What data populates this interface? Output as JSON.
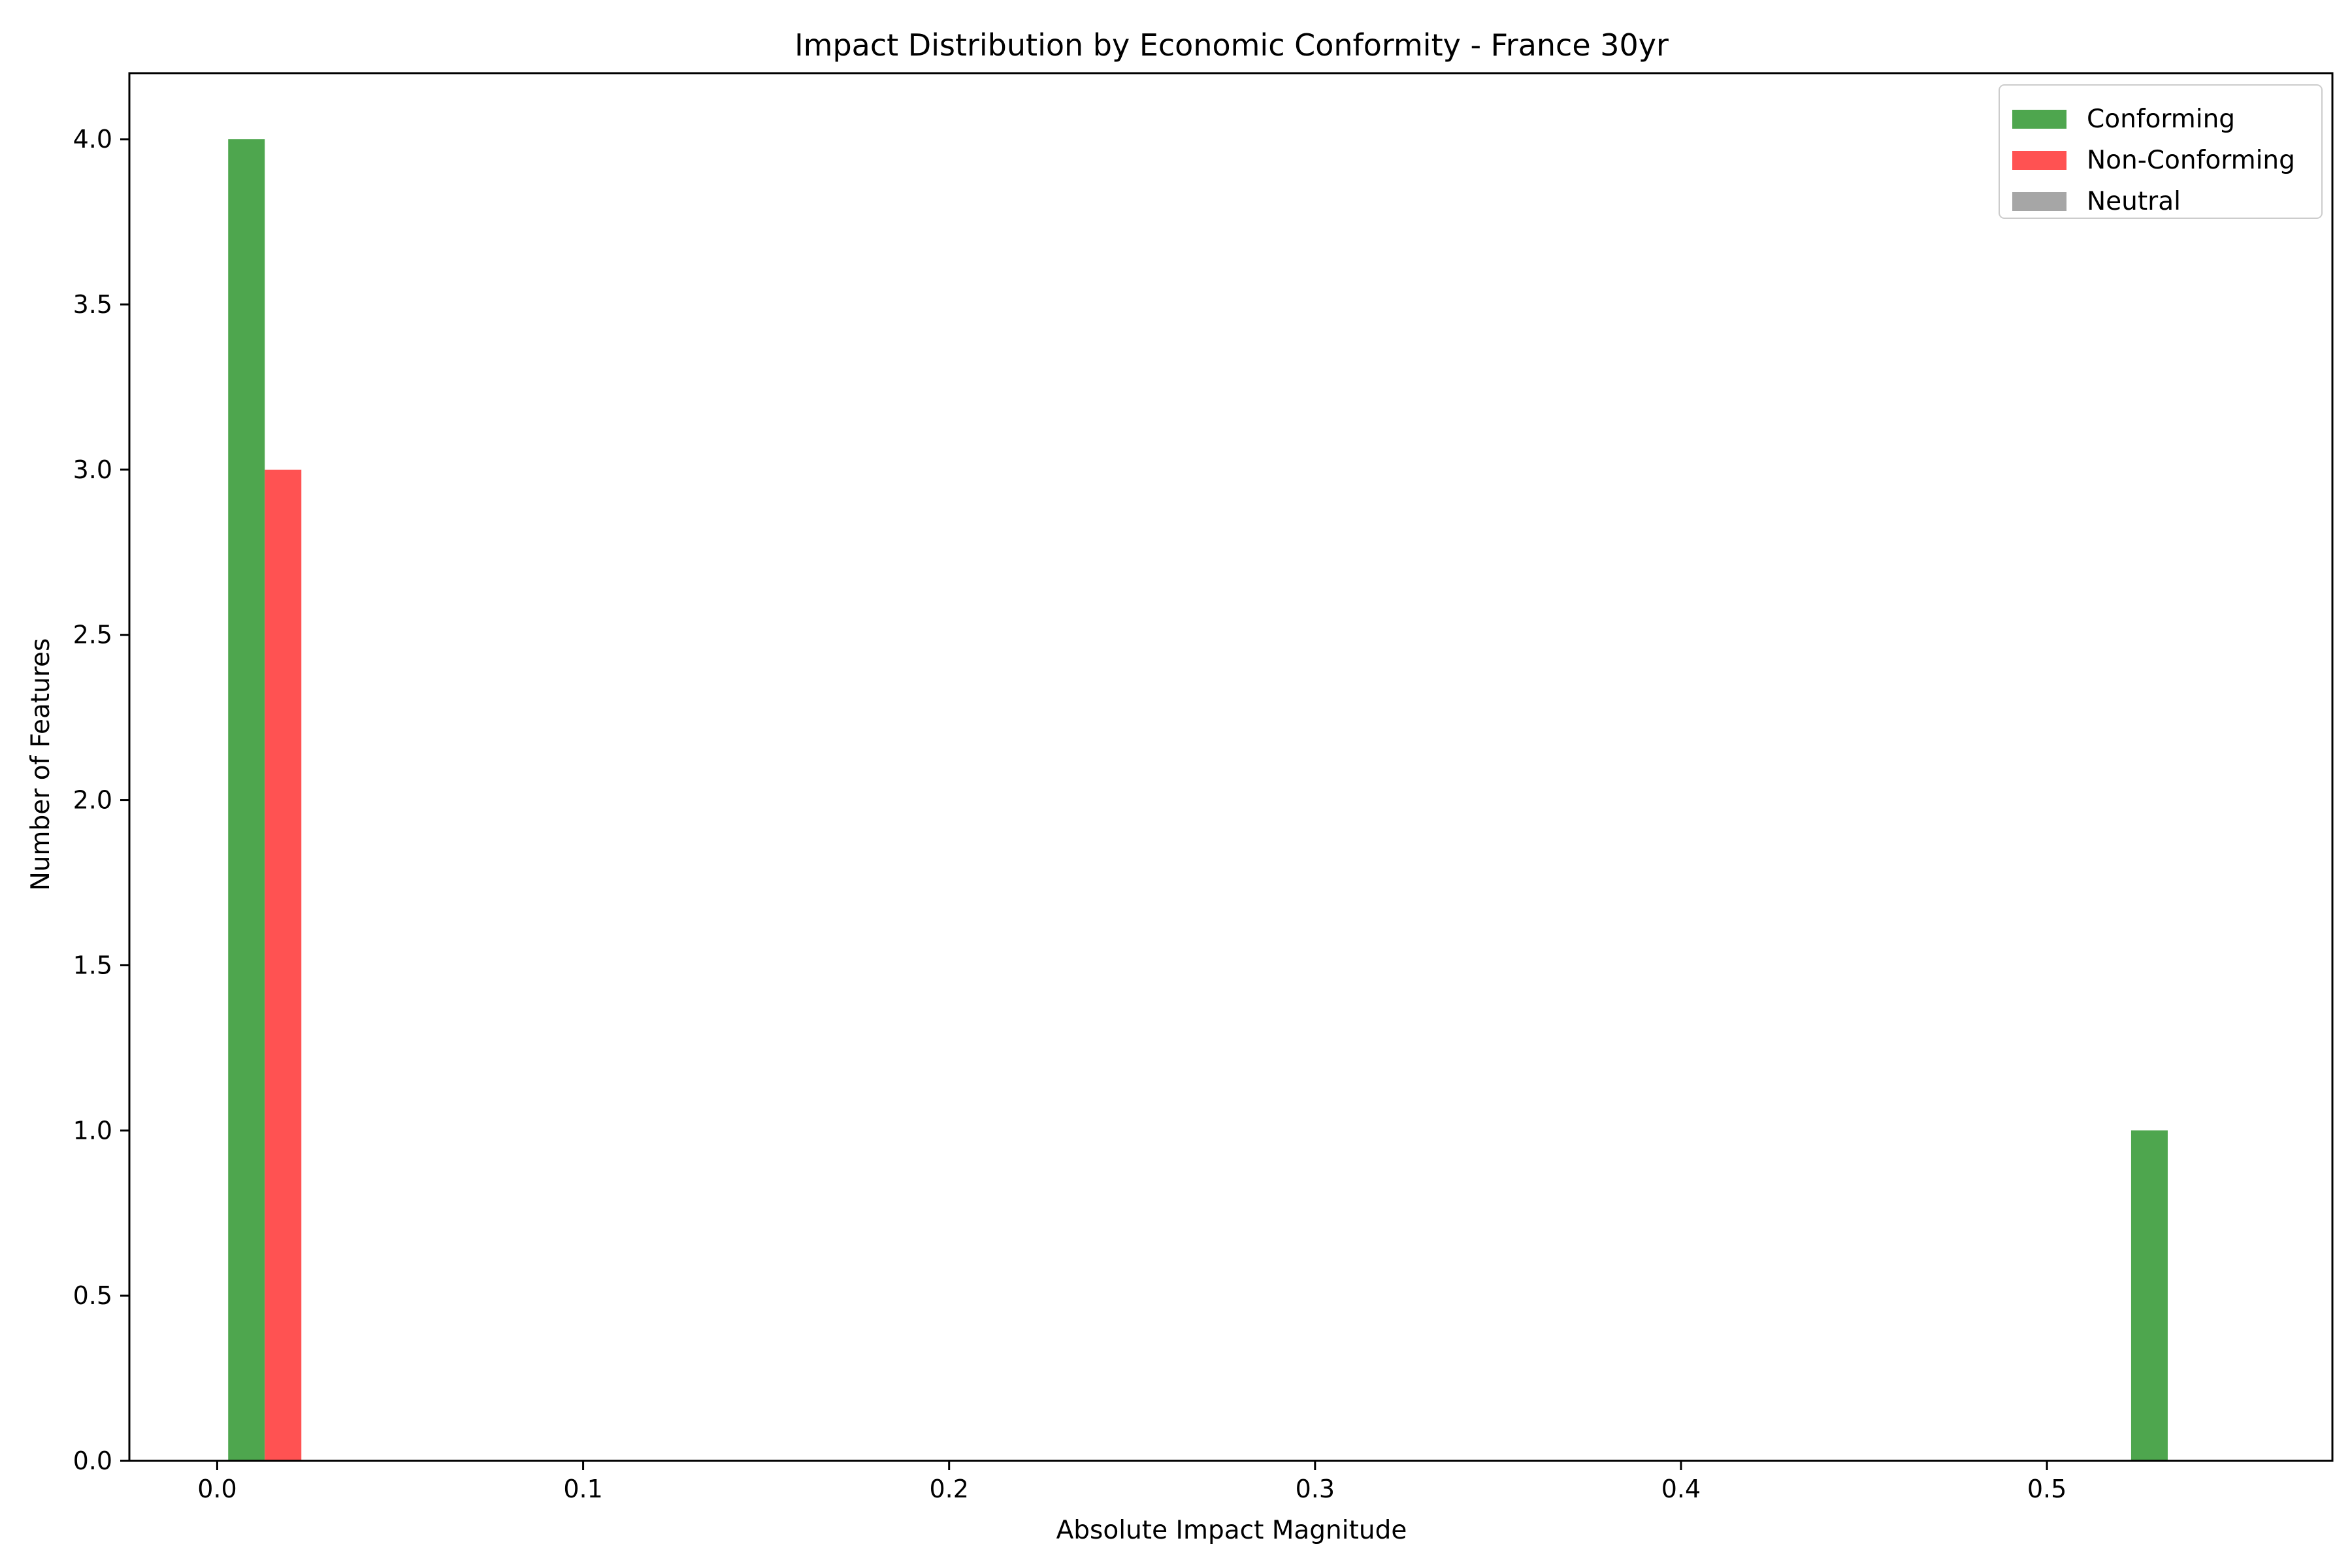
{
  "chart_data": {
    "type": "bar",
    "title": "Impact Distribution by Economic Conformity - France 30yr",
    "xlabel": "Absolute Impact Magnitude",
    "ylabel": "Number of Features",
    "xlim": [
      -0.024,
      0.578
    ],
    "ylim": [
      0,
      4.2
    ],
    "xticks": [
      "0.0",
      "0.1",
      "0.2",
      "0.3",
      "0.4",
      "0.5"
    ],
    "yticks": [
      "0.0",
      "0.5",
      "1.0",
      "1.5",
      "2.0",
      "2.5",
      "3.0",
      "3.5",
      "4.0"
    ],
    "grid": false,
    "legend_position": "top-right",
    "series": [
      {
        "name": "Conforming",
        "color": "#4ea64e",
        "bars": [
          {
            "x_start": 0.003,
            "x_end": 0.013,
            "value": 4
          },
          {
            "x_start": 0.523,
            "x_end": 0.533,
            "value": 1
          }
        ]
      },
      {
        "name": "Non-Conforming",
        "color": "#ff5252",
        "bars": [
          {
            "x_start": 0.013,
            "x_end": 0.023,
            "value": 3
          }
        ]
      },
      {
        "name": "Neutral",
        "color": "#a6a6a6",
        "bars": []
      }
    ]
  }
}
